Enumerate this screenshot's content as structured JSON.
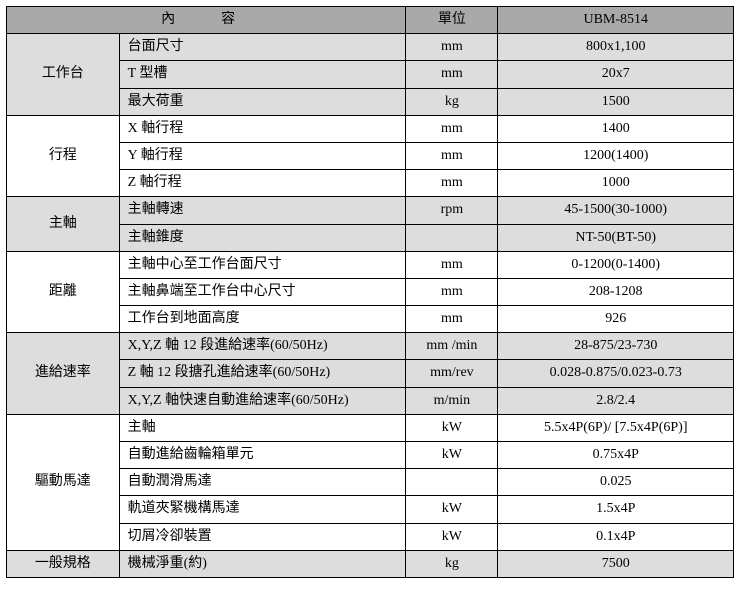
{
  "colors": {
    "header_bg": "#a9a9a9",
    "shade_bg": "#dddddd",
    "plain_bg": "#ffffff",
    "border": "#000000",
    "text": "#000000"
  },
  "header": {
    "content": "內　容",
    "unit": "單位",
    "model": "UBM-8514"
  },
  "groups": [
    {
      "category": "工作台",
      "shaded": true,
      "rows": [
        {
          "item": "台面尺寸",
          "unit": "mm",
          "value": "800x1,100"
        },
        {
          "item": "T 型槽",
          "unit": "mm",
          "value": "20x7"
        },
        {
          "item": "最大荷重",
          "unit": "kg",
          "value": "1500"
        }
      ]
    },
    {
      "category": "行程",
      "shaded": false,
      "rows": [
        {
          "item": "X 軸行程",
          "unit": "mm",
          "value": "1400"
        },
        {
          "item": "Y 軸行程",
          "unit": "mm",
          "value": "1200(1400)"
        },
        {
          "item": "Z 軸行程",
          "unit": "mm",
          "value": "1000"
        }
      ]
    },
    {
      "category": "主軸",
      "shaded": true,
      "rows": [
        {
          "item": "主軸轉速",
          "unit": "rpm",
          "value": "45-1500(30-1000)"
        },
        {
          "item": "主軸錐度",
          "unit": "",
          "value": "NT-50(BT-50)"
        }
      ]
    },
    {
      "category": "距離",
      "shaded": false,
      "rows": [
        {
          "item": "主軸中心至工作台面尺寸",
          "unit": "mm",
          "value": "0-1200(0-1400)"
        },
        {
          "item": "主軸鼻端至工作台中心尺寸",
          "unit": "mm",
          "value": "208-1208"
        },
        {
          "item": "工作台到地面高度",
          "unit": "mm",
          "value": "926"
        }
      ]
    },
    {
      "category": "進給速率",
      "shaded": true,
      "rows": [
        {
          "item": "X,Y,Z 軸 12 段進給速率(60/50Hz)",
          "unit": "mm /min",
          "value": "28-875/23-730"
        },
        {
          "item": "Z 軸 12 段搪孔進給速率(60/50Hz)",
          "unit": "mm/rev",
          "value": "0.028-0.875/0.023-0.73"
        },
        {
          "item": "X,Y,Z 軸快速自動進給速率(60/50Hz)",
          "unit": "m/min",
          "value": "2.8/2.4"
        }
      ]
    },
    {
      "category": "驅動馬達",
      "shaded": false,
      "rows": [
        {
          "item": "主軸",
          "unit": "kW",
          "value": "5.5x4P(6P)/ [7.5x4P(6P)]"
        },
        {
          "item": "自動進給齒輪箱單元",
          "unit": "kW",
          "value": "0.75x4P"
        },
        {
          "item": "自動潤滑馬達",
          "unit": "",
          "value": "0.025"
        },
        {
          "item": "軌道夾緊機構馬達",
          "unit": "kW",
          "value": "1.5x4P"
        },
        {
          "item": "切屑冷卻裝置",
          "unit": "kW",
          "value": "0.1x4P"
        }
      ]
    },
    {
      "category": "一般規格",
      "shaded": true,
      "rows": [
        {
          "item": "機械淨重(約)",
          "unit": "kg",
          "value": "7500"
        }
      ]
    }
  ]
}
